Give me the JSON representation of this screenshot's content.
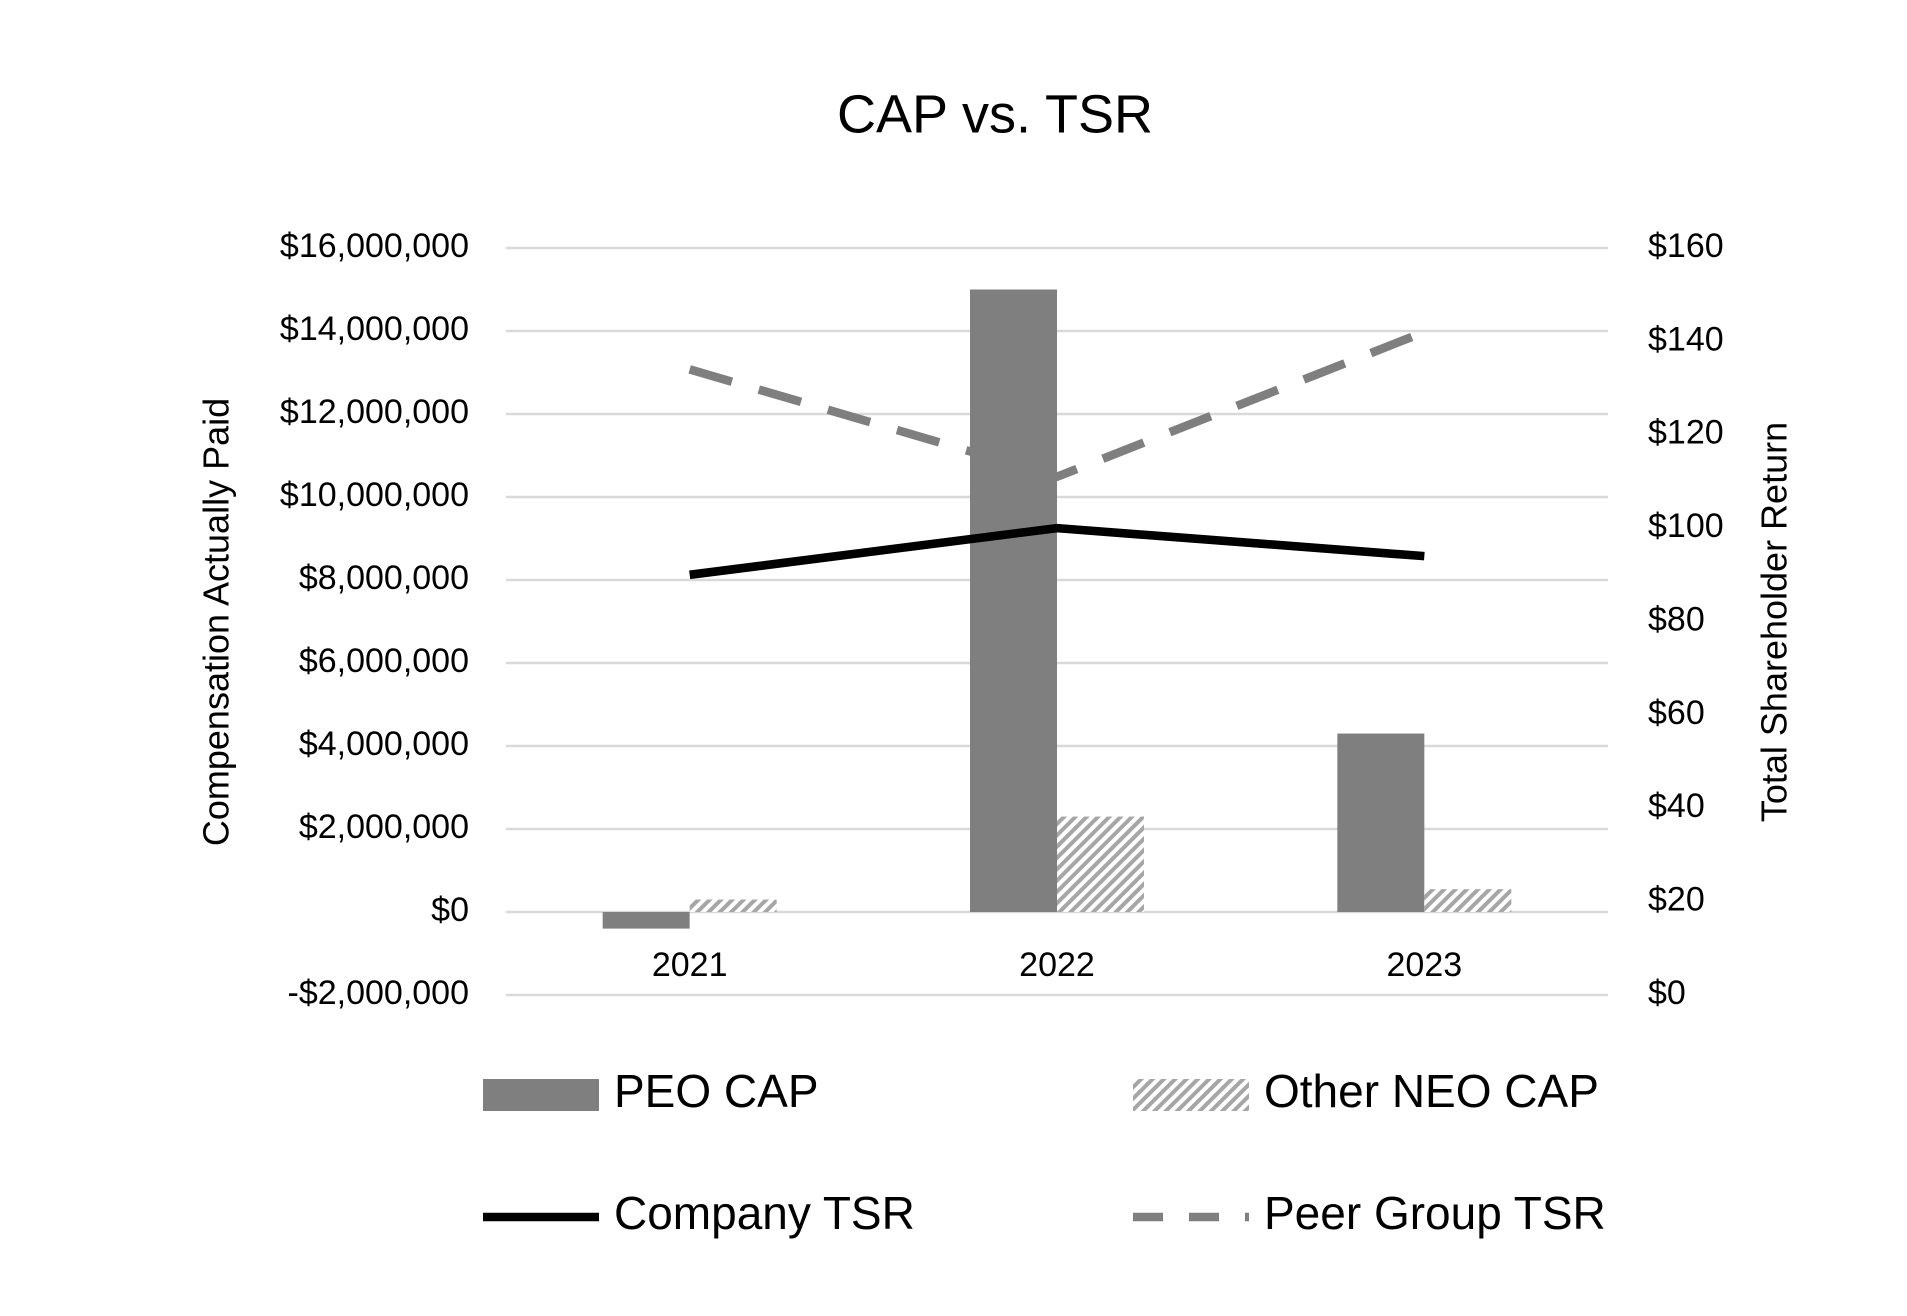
{
  "chart_data": {
    "type": "combo",
    "title": "CAP vs. TSR",
    "y_label": "Compensation Actually Paid",
    "y2_label": "Total Shareholder Return",
    "categories": [
      "2021",
      "2022",
      "2023"
    ],
    "series": [
      {
        "name": "PEO CAP",
        "type": "bar",
        "color": "#7f7f7f",
        "values": [
          -400000,
          15000000,
          4300000
        ]
      },
      {
        "name": "Other NEO CAP",
        "type": "bar",
        "color": "#a6a6a6",
        "pattern": "hatch",
        "values": [
          300000,
          2300000,
          550000
        ]
      },
      {
        "name": "Company TSR",
        "type": "line",
        "axis": "y2",
        "color": "#000000",
        "values": [
          90,
          100,
          94
        ]
      },
      {
        "name": "Peer Group TSR",
        "type": "line",
        "axis": "y2",
        "color": "#7f7f7f",
        "dashed": true,
        "values": [
          134,
          111,
          142
        ]
      }
    ],
    "ylim": [
      -2000000,
      16000000
    ],
    "yticks": [
      {
        "value": -2000000,
        "label": "-$2,000,000"
      },
      {
        "value": 0,
        "label": "$0"
      },
      {
        "value": 2000000,
        "label": "$2,000,000"
      },
      {
        "value": 4000000,
        "label": "$4,000,000"
      },
      {
        "value": 6000000,
        "label": "$6,000,000"
      },
      {
        "value": 8000000,
        "label": "$8,000,000"
      },
      {
        "value": 10000000,
        "label": "$10,000,000"
      },
      {
        "value": 12000000,
        "label": "$12,000,000"
      },
      {
        "value": 14000000,
        "label": "$14,000,000"
      },
      {
        "value": 16000000,
        "label": "$16,000,000"
      }
    ],
    "y2lim": [
      0,
      160
    ],
    "y2ticks": [
      {
        "value": 0,
        "label": "$0"
      },
      {
        "value": 20,
        "label": "$20"
      },
      {
        "value": 40,
        "label": "$40"
      },
      {
        "value": 60,
        "label": "$60"
      },
      {
        "value": 80,
        "label": "$80"
      },
      {
        "value": 100,
        "label": "$100"
      },
      {
        "value": 120,
        "label": "$120"
      },
      {
        "value": 140,
        "label": "$140"
      },
      {
        "value": 160,
        "label": "$160"
      }
    ],
    "grid": true,
    "legend": "bottom"
  }
}
